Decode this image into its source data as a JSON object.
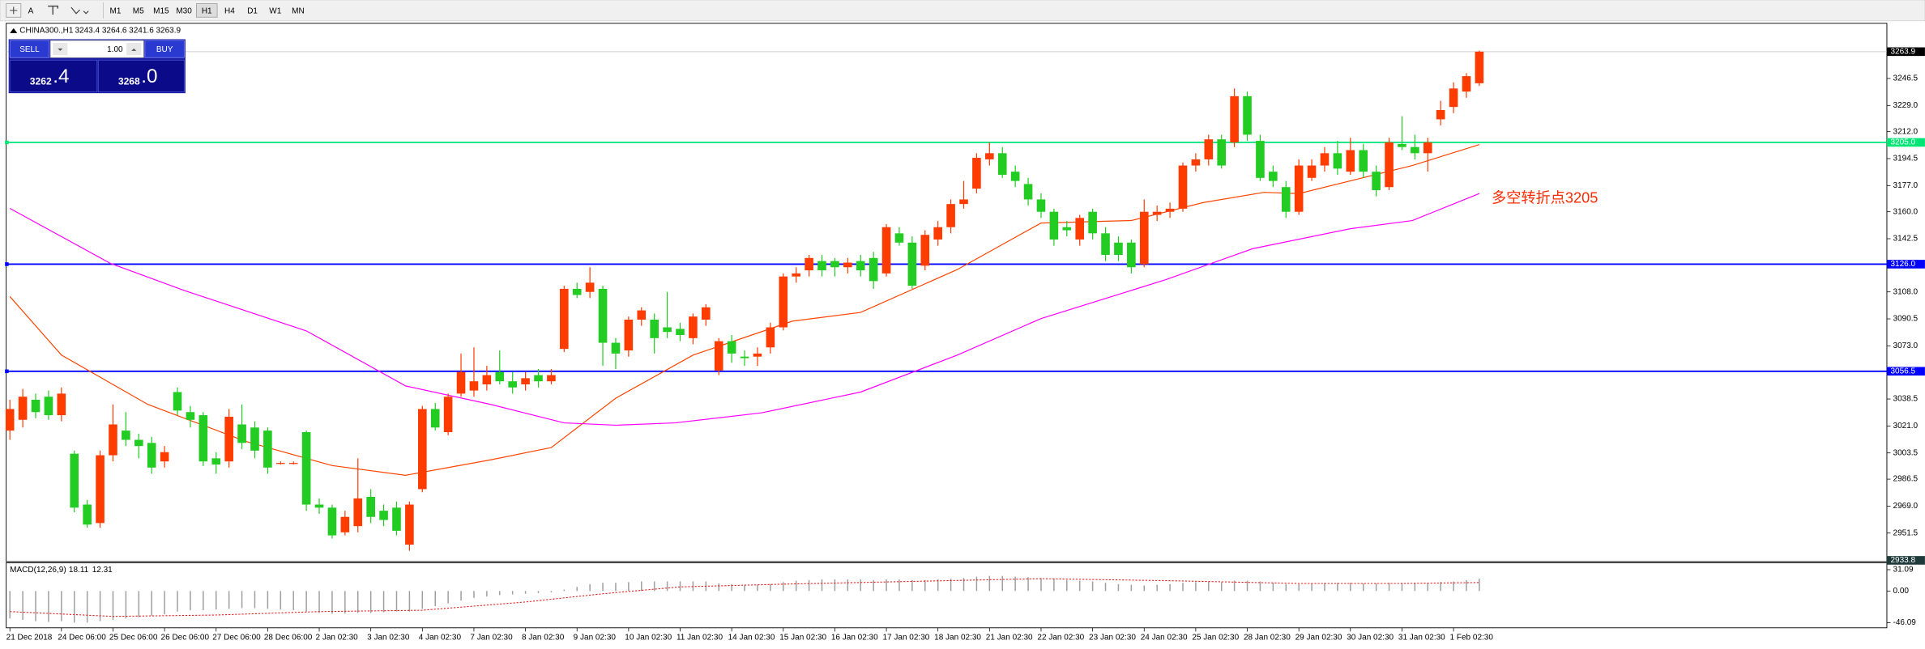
{
  "toolbar": {
    "font_button": "A",
    "timeframes": [
      "M1",
      "M5",
      "M15",
      "M30",
      "H1",
      "H4",
      "D1",
      "W1",
      "MN"
    ],
    "active": 4
  },
  "trade_panel": {
    "sell": "SELL",
    "buy": "BUY",
    "lots": "1.00",
    "bid_main": "3262",
    "bid_frac": ".4",
    "ask_main": "3268",
    "ask_frac": ".0"
  },
  "chart_data": {
    "type": "candlestick",
    "symbol": "CHINA300.,H1",
    "up_color": "#ff3c00",
    "down_color": "#22cc22",
    "grid": false,
    "annotation": "多空转折点3205",
    "annotation_color": "#ff2a00",
    "ylim": [
      2933.8,
      3281.5
    ],
    "yticks": [
      3246.5,
      {
        "value": 3229,
        "label": "3229.0"
      },
      {
        "value": 3212,
        "label": "3212.0"
      },
      3194.5,
      {
        "value": 3177,
        "label": "3177.0"
      },
      {
        "value": 3160,
        "label": "3160.0"
      },
      3142.5,
      {
        "value": 3108,
        "label": "3108.0"
      },
      3090.5,
      {
        "value": 3073,
        "label": "3073.0"
      },
      3038.5,
      {
        "value": 3021,
        "label": "3021.0"
      },
      3003.5,
      2986.5,
      {
        "value": 2969,
        "label": "2969.0"
      },
      2951.5
    ],
    "hlines": [
      {
        "value": 3205,
        "label": "3205.0",
        "color": "#00e676"
      },
      {
        "value": 3126,
        "label": "3126.0",
        "color": "#0000ff"
      },
      {
        "value": 3056.5,
        "label": "3056.5",
        "color": "#0000ff"
      }
    ],
    "categories": [
      "21 Dec 2018",
      null,
      null,
      null,
      "24 Dec 06:00",
      null,
      null,
      null,
      "25 Dec 06:00",
      null,
      null,
      null,
      "26 Dec 06:00",
      null,
      null,
      null,
      "27 Dec 06:00",
      null,
      null,
      null,
      "28 Dec 06:00",
      null,
      null,
      null,
      "2 Jan 02:30",
      null,
      null,
      null,
      "3 Jan 02:30",
      null,
      null,
      null,
      "4 Jan 02:30",
      null,
      null,
      null,
      "7 Jan 02:30",
      null,
      null,
      null,
      "8 Jan 02:30",
      null,
      null,
      null,
      "9 Jan 02:30",
      null,
      null,
      null,
      "10 Jan 02:30",
      null,
      null,
      null,
      "11 Jan 02:30",
      null,
      null,
      null,
      "14 Jan 02:30",
      null,
      null,
      null,
      "15 Jan 02:30",
      null,
      null,
      null,
      "16 Jan 02:30",
      null,
      null,
      null,
      "17 Jan 02:30",
      null,
      null,
      null,
      "18 Jan 02:30",
      null,
      null,
      null,
      "21 Jan 02:30",
      null,
      null,
      null,
      "22 Jan 02:30",
      null,
      null,
      null,
      "23 Jan 02:30",
      null,
      null,
      null,
      "24 Jan 02:30",
      null,
      null,
      null,
      "25 Jan 02:30",
      null,
      null,
      null,
      "28 Jan 02:30",
      null,
      null,
      null,
      "29 Jan 02:30",
      null,
      null,
      null,
      "30 Jan 02:30",
      null,
      null,
      null,
      "31 Jan 02:30",
      null,
      null,
      null,
      "1 Feb 02:30",
      null,
      null
    ],
    "open": [
      3018,
      3025,
      3038,
      3040,
      3028,
      3003,
      2970,
      2958,
      3002,
      3018,
      3012,
      3010,
      2998,
      3043,
      3030,
      3028,
      3000,
      2998,
      3022,
      3020,
      3018,
      2997,
      2997,
      3017,
      2970,
      2968,
      2952,
      2956,
      2975,
      2966,
      2968,
      2944,
      2980,
      3032,
      3017,
      3042,
      3044,
      3048,
      3056,
      3050,
      3048,
      3054,
      3050,
      3071,
      3110,
      3108,
      3110,
      3075,
      3070,
      3090,
      3090,
      3085,
      3084,
      3078,
      3090,
      3057,
      3076,
      3066,
      3066,
      3072,
      3085,
      3118,
      3122,
      3128,
      3128,
      3124,
      3128,
      3130,
      3120,
      3146,
      3140,
      3125,
      3142,
      3150,
      3165,
      3175,
      3194,
      3198,
      3186,
      3178,
      3168,
      3160,
      3150,
      3142,
      3160,
      3146,
      3140,
      3140,
      3126,
      3158,
      3160,
      3162,
      3190,
      3194,
      3207,
      3205,
      3235,
      3206,
      3186,
      3176,
      3160,
      3182,
      3190,
      3198,
      3186,
      3200,
      3186,
      3176,
      3204,
      3202,
      3198,
      3220,
      3228,
      3238,
      3243.4
    ],
    "high": [
      3038,
      3045,
      3042,
      3044,
      3046,
      3005,
      2973,
      3005,
      3035,
      3030,
      3016,
      3014,
      3008,
      3046,
      3034,
      3030,
      3004,
      3032,
      3035,
      3024,
      3020,
      2998,
      2998,
      3018,
      2974,
      2970,
      2966,
      3000,
      2980,
      2970,
      2972,
      2972,
      3034,
      3036,
      3042,
      3068,
      3072,
      3060,
      3070,
      3056,
      3056,
      3058,
      3058,
      3112,
      3114,
      3124,
      3112,
      3078,
      3092,
      3098,
      3094,
      3108,
      3088,
      3094,
      3100,
      3078,
      3080,
      3070,
      3072,
      3088,
      3120,
      3124,
      3132,
      3132,
      3130,
      3130,
      3132,
      3134,
      3152,
      3150,
      3144,
      3148,
      3154,
      3168,
      3180,
      3198,
      3205,
      3202,
      3190,
      3182,
      3172,
      3162,
      3154,
      3158,
      3162,
      3150,
      3144,
      3142,
      3168,
      3164,
      3166,
      3192,
      3198,
      3210,
      3210,
      3240,
      3238,
      3210,
      3190,
      3180,
      3194,
      3194,
      3202,
      3206,
      3208,
      3204,
      3190,
      3208,
      3222,
      3210,
      3208,
      3232,
      3244,
      3250,
      3264.6
    ],
    "low": [
      3012,
      3020,
      3026,
      3025,
      3024,
      2965,
      2955,
      2955,
      2998,
      3008,
      3000,
      2990,
      2994,
      3028,
      3020,
      2995,
      2990,
      2994,
      3006,
      3000,
      2990,
      2996,
      2996,
      2966,
      2964,
      2948,
      2950,
      2952,
      2958,
      2956,
      2950,
      2940,
      2978,
      3018,
      3015,
      3040,
      3040,
      3044,
      3048,
      3042,
      3044,
      3046,
      3048,
      3069,
      3104,
      3104,
      3060,
      3058,
      3066,
      3086,
      3068,
      3078,
      3076,
      3074,
      3086,
      3054,
      3062,
      3060,
      3060,
      3068,
      3083,
      3114,
      3118,
      3118,
      3118,
      3120,
      3118,
      3110,
      3118,
      3138,
      3110,
      3122,
      3138,
      3146,
      3162,
      3172,
      3190,
      3182,
      3176,
      3164,
      3156,
      3138,
      3144,
      3138,
      3142,
      3128,
      3128,
      3120,
      3124,
      3154,
      3156,
      3160,
      3186,
      3190,
      3188,
      3202,
      3206,
      3180,
      3176,
      3156,
      3158,
      3180,
      3186,
      3184,
      3184,
      3182,
      3170,
      3174,
      3200,
      3194,
      3186,
      3216,
      3224,
      3234,
      3241.6
    ],
    "close": [
      3032,
      3040,
      3030,
      3028,
      3042,
      2968,
      2957,
      3002,
      3022,
      3012,
      3008,
      2994,
      3004,
      3031,
      3025,
      2998,
      2996,
      3027,
      3010,
      3005,
      2994,
      2997,
      2997,
      2970,
      2968,
      2950,
      2962,
      2974,
      2962,
      2960,
      2953,
      2970,
      3032,
      3020,
      3040,
      3056,
      3050,
      3054,
      3050,
      3046,
      3052,
      3050,
      3054,
      3110,
      3106,
      3114,
      3075,
      3068,
      3090,
      3096,
      3078,
      3082,
      3080,
      3092,
      3098,
      3076,
      3068,
      3065,
      3068,
      3085,
      3118,
      3120,
      3130,
      3122,
      3124,
      3127,
      3122,
      3115,
      3150,
      3140,
      3112,
      3145,
      3150,
      3165,
      3168,
      3195,
      3198,
      3184,
      3180,
      3168,
      3160,
      3142,
      3148,
      3156,
      3146,
      3132,
      3132,
      3124,
      3160,
      3160,
      3162,
      3190,
      3194,
      3207,
      3190,
      3235,
      3210,
      3182,
      3180,
      3160,
      3190,
      3190,
      3198,
      3188,
      3200,
      3186,
      3174,
      3205,
      3202,
      3198,
      3205,
      3226,
      3240,
      3248,
      3263.9
    ],
    "moving_averages": [
      {
        "color": "#ff4500",
        "x": [
          0,
          4,
          10.7,
          18.3,
          25,
          30.7,
          37.3,
          42,
          47,
          53,
          60.7,
          66,
          73.5,
          80,
          87,
          92.6,
          97.3,
          100,
          108.8,
          114
        ],
        "values": [
          3105,
          3067,
          3035,
          3011,
          2995.3,
          2989,
          2999,
          3007,
          3039,
          3067,
          3089,
          3094.7,
          3122.5,
          3152.7,
          3154.3,
          3166,
          3172.6,
          3171.8,
          3190,
          3203.6
        ]
      },
      {
        "color": "#ff00ff",
        "x": [
          0,
          7.8,
          13.5,
          23,
          30.7,
          37.3,
          43,
          47,
          51.6,
          58.3,
          66,
          73.5,
          80,
          89.7,
          96.4,
          104,
          108.8,
          114
        ],
        "values": [
          3162.2,
          3126.5,
          3109,
          3082.7,
          3047,
          3035,
          3023,
          3021.5,
          3023,
          3029.5,
          3043,
          3067,
          3090.7,
          3116,
          3136,
          3149,
          3154.3,
          3171.8
        ]
      }
    ],
    "macd": {
      "title": "MACD(12,26,9)",
      "ylim": [
        -53.6,
        41.1
      ],
      "yticks": [
        31.09,
        {
          "value": 0,
          "label": "0.00"
        },
        -46.09
      ],
      "hist_color": "#a0a0a0",
      "signal_color": "#e02020",
      "histogram": [
        -40,
        -42,
        -44,
        -45,
        -44,
        -46,
        -46,
        -44,
        -42,
        -40,
        -38,
        -36,
        -34,
        -30,
        -28,
        -28,
        -27,
        -26,
        -25,
        -25,
        -26,
        -27,
        -28,
        -30,
        -32,
        -33,
        -33,
        -32,
        -32,
        -31,
        -30,
        -30,
        -26,
        -22,
        -18,
        -14,
        -10,
        -8,
        -6,
        -5,
        -4,
        -3,
        -2,
        2,
        6,
        10,
        12,
        12,
        13,
        14,
        14,
        14,
        14,
        14,
        14,
        11,
        10,
        9,
        9,
        10,
        13,
        15,
        16,
        17,
        17,
        17,
        17,
        16,
        17,
        17,
        16,
        16,
        17,
        18,
        19,
        21,
        22,
        22,
        21,
        20,
        19,
        18,
        16,
        15,
        14,
        12,
        10,
        9,
        8,
        9,
        10,
        12,
        13,
        14,
        13,
        15,
        15,
        14,
        12,
        10,
        10,
        11,
        12,
        12,
        12,
        11,
        11,
        12,
        12,
        12,
        12,
        13,
        14,
        16,
        18.11
      ],
      "signal": {
        "x": [
          0,
          8,
          16,
          24,
          32,
          40,
          46,
          52,
          60,
          70,
          80,
          90,
          100,
          108,
          114
        ],
        "values": [
          -30,
          -37,
          -35,
          -30,
          -28,
          -16,
          -4,
          6,
          10,
          14,
          18,
          15,
          11,
          11,
          12.31
        ]
      }
    }
  }
}
